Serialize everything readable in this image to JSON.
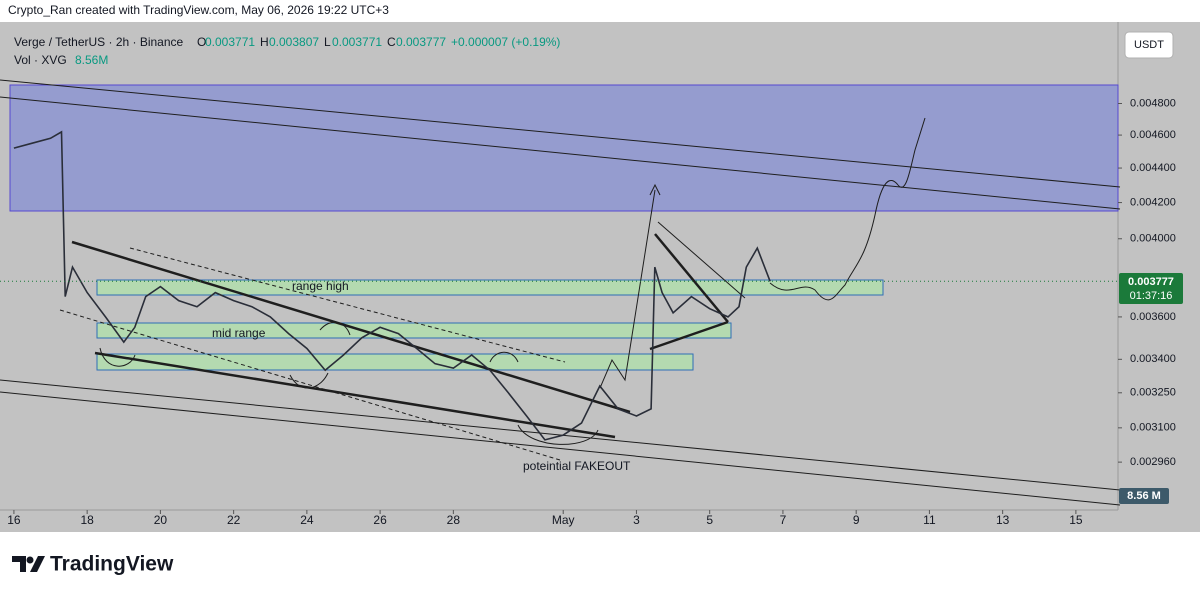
{
  "top_bar": {
    "text": "Crypto_Ran created with TradingView.com, May 06, 2026 19:22 UTC+3"
  },
  "legend": {
    "symbol": "Verge / TetherUS · 2h · Binance",
    "open_label": "O",
    "open": 0.003771,
    "high_label": "H",
    "high": 0.003807,
    "low_label": "L",
    "low": 0.003771,
    "close_label": "C",
    "close": 0.003777,
    "change": "+0.000007 (+0.19%)",
    "volume_label": "Vol · XVG",
    "volume": "8.56M"
  },
  "currency_button": "USDT",
  "price_tag": {
    "price": 0.003777,
    "countdown": "01:37:16"
  },
  "volume_tag": "8.56 M",
  "footer": {
    "brand": "TradingView"
  },
  "chart_data": {
    "type": "line",
    "log_scale": true,
    "color": "#2a2e39",
    "annotations": [
      "range high",
      "mid range",
      "poteintial FAKEOUT"
    ],
    "xlim": [
      -0.38,
      30.15
    ],
    "xticks": [
      {
        "value": 0,
        "label": "16"
      },
      {
        "value": 2,
        "label": "18"
      },
      {
        "value": 4,
        "label": "20"
      },
      {
        "value": 6,
        "label": "22"
      },
      {
        "value": 8,
        "label": "24"
      },
      {
        "value": 10,
        "label": "26"
      },
      {
        "value": 12,
        "label": "28"
      },
      {
        "value": 15,
        "label": "May"
      },
      {
        "value": 17,
        "label": "3"
      },
      {
        "value": 19,
        "label": "5"
      },
      {
        "value": 21,
        "label": "7"
      },
      {
        "value": 23,
        "label": "9"
      },
      {
        "value": 25,
        "label": "11"
      },
      {
        "value": 27,
        "label": "13"
      },
      {
        "value": 29,
        "label": "15"
      }
    ],
    "ylim": [
      0.002775,
      0.0053
    ],
    "yticks": [
      {
        "value": 0.0048,
        "label": "0.004800"
      },
      {
        "value": 0.0046,
        "label": "0.004600"
      },
      {
        "value": 0.0044,
        "label": "0.004400"
      },
      {
        "value": 0.0042,
        "label": "0.004200"
      },
      {
        "value": 0.004,
        "label": "0.004000"
      },
      {
        "value": 0.0036,
        "label": "0.003600"
      },
      {
        "value": 0.0034,
        "label": "0.003400"
      },
      {
        "value": 0.00325,
        "label": "0.003250"
      },
      {
        "value": 0.0031,
        "label": "0.003100"
      },
      {
        "value": 0.00296,
        "label": "0.002960"
      }
    ],
    "x": [
      0,
      0.5,
      1.0,
      1.3,
      1.4,
      1.6,
      2.0,
      2.5,
      3.0,
      3.3,
      3.6,
      4.0,
      4.5,
      5.0,
      5.5,
      6.0,
      6.5,
      7.0,
      7.5,
      8.0,
      8.5,
      9.0,
      9.5,
      10.0,
      10.5,
      11.0,
      11.5,
      12.0,
      12.5,
      13.0,
      13.5,
      14.0,
      14.5,
      15.0,
      15.5,
      16.0,
      16.5,
      17.0,
      17.4,
      17.5,
      17.7,
      18.0,
      18.5,
      19.0,
      19.5,
      19.8,
      20.0,
      20.3,
      20.65
    ],
    "values": [
      0.00452,
      0.00455,
      0.00458,
      0.00462,
      0.0037,
      0.00385,
      0.00372,
      0.0036,
      0.00348,
      0.00355,
      0.0037,
      0.00375,
      0.00368,
      0.00365,
      0.00372,
      0.00368,
      0.00365,
      0.0036,
      0.00352,
      0.00345,
      0.00335,
      0.00342,
      0.0035,
      0.00355,
      0.00352,
      0.00345,
      0.00338,
      0.00336,
      0.00342,
      0.00335,
      0.00325,
      0.00315,
      0.00305,
      0.00307,
      0.00312,
      0.00328,
      0.00318,
      0.00315,
      0.00318,
      0.00385,
      0.00372,
      0.00362,
      0.0037,
      0.00364,
      0.0036,
      0.00365,
      0.00385,
      0.00395,
      0.003777
    ]
  }
}
